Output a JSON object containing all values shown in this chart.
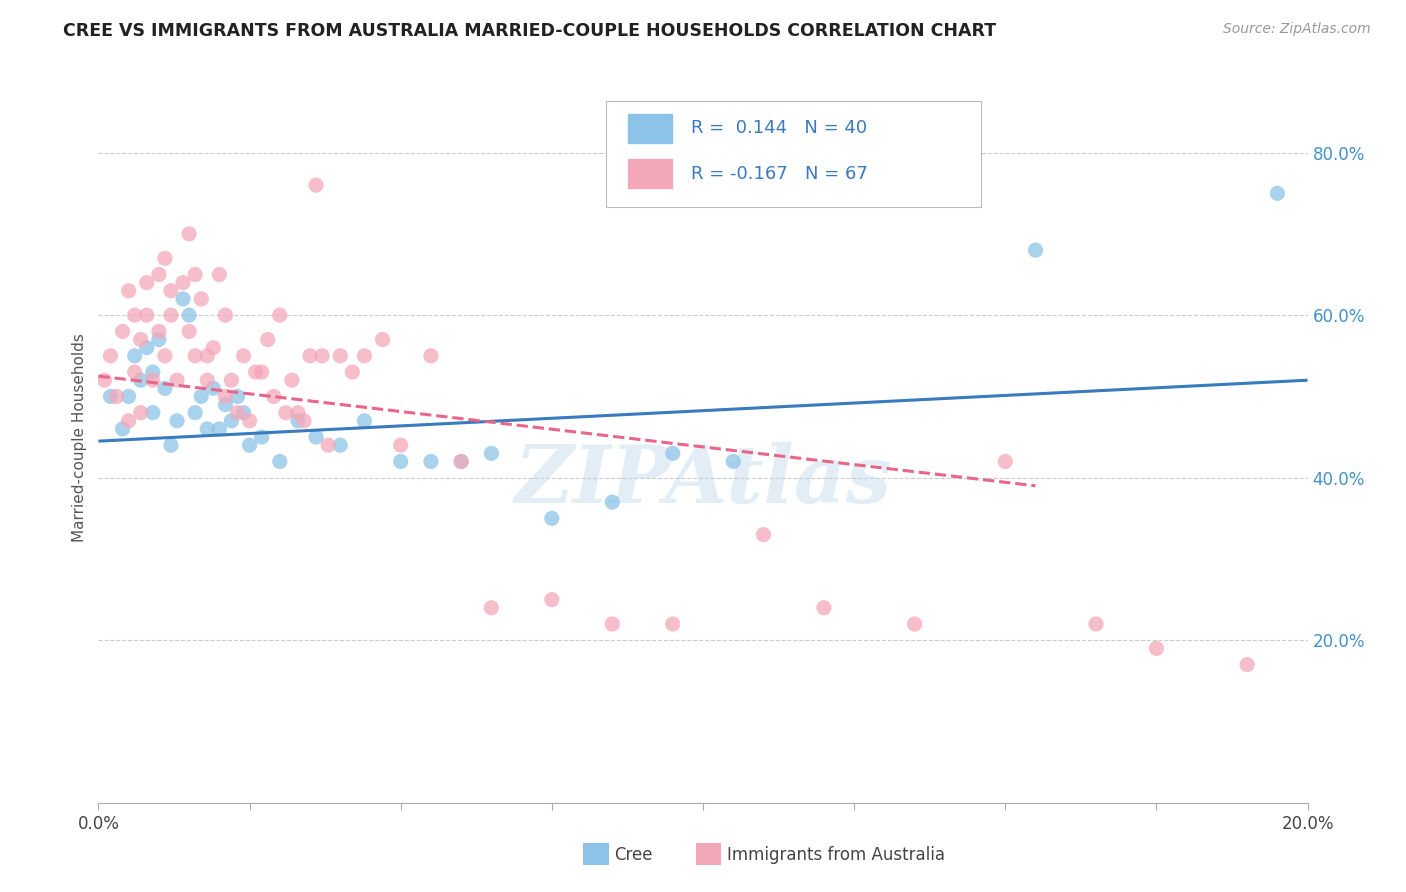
{
  "title": "CREE VS IMMIGRANTS FROM AUSTRALIA MARRIED-COUPLE HOUSEHOLDS CORRELATION CHART",
  "source": "Source: ZipAtlas.com",
  "xlabel_bottom": "Cree",
  "xlabel_bottom2": "Immigrants from Australia",
  "ylabel": "Married-couple Households",
  "legend_r1": "R =  0.144   N = 40",
  "legend_r2": "R = -0.167   N = 67",
  "blue_color": "#8dc3e8",
  "pink_color": "#f4a7b9",
  "trend_blue": "#3a7abf",
  "trend_pink": "#e8668a",
  "watermark": "ZIPAtlas",
  "xlim": [
    0.0,
    0.2
  ],
  "ylim": [
    0.0,
    0.9
  ],
  "xticks": [
    0.0,
    0.025,
    0.05,
    0.075,
    0.1,
    0.125,
    0.15,
    0.175,
    0.2
  ],
  "xtick_labels": [
    "0.0%",
    "",
    "",
    "",
    "",
    "",
    "",
    "",
    "20.0%"
  ],
  "yticks": [
    0.2,
    0.4,
    0.6,
    0.8
  ],
  "blue_x": [
    0.002,
    0.004,
    0.005,
    0.006,
    0.007,
    0.008,
    0.009,
    0.009,
    0.01,
    0.011,
    0.012,
    0.013,
    0.014,
    0.015,
    0.016,
    0.017,
    0.018,
    0.019,
    0.02,
    0.021,
    0.022,
    0.023,
    0.024,
    0.025,
    0.027,
    0.03,
    0.033,
    0.036,
    0.04,
    0.044,
    0.05,
    0.055,
    0.06,
    0.065,
    0.075,
    0.085,
    0.095,
    0.105,
    0.155,
    0.195
  ],
  "blue_y": [
    0.5,
    0.46,
    0.5,
    0.55,
    0.52,
    0.56,
    0.48,
    0.53,
    0.57,
    0.51,
    0.44,
    0.47,
    0.62,
    0.6,
    0.48,
    0.5,
    0.46,
    0.51,
    0.46,
    0.49,
    0.47,
    0.5,
    0.48,
    0.44,
    0.45,
    0.42,
    0.47,
    0.45,
    0.44,
    0.47,
    0.42,
    0.42,
    0.42,
    0.43,
    0.35,
    0.37,
    0.43,
    0.42,
    0.68,
    0.75
  ],
  "pink_x": [
    0.001,
    0.002,
    0.003,
    0.004,
    0.005,
    0.005,
    0.006,
    0.006,
    0.007,
    0.007,
    0.008,
    0.008,
    0.009,
    0.01,
    0.01,
    0.011,
    0.011,
    0.012,
    0.012,
    0.013,
    0.014,
    0.015,
    0.015,
    0.016,
    0.016,
    0.017,
    0.018,
    0.018,
    0.019,
    0.02,
    0.021,
    0.021,
    0.022,
    0.023,
    0.024,
    0.025,
    0.026,
    0.027,
    0.028,
    0.029,
    0.03,
    0.031,
    0.032,
    0.033,
    0.034,
    0.035,
    0.036,
    0.037,
    0.038,
    0.04,
    0.042,
    0.044,
    0.047,
    0.05,
    0.055,
    0.06,
    0.065,
    0.075,
    0.085,
    0.095,
    0.11,
    0.12,
    0.135,
    0.15,
    0.165,
    0.175,
    0.19
  ],
  "pink_y": [
    0.52,
    0.55,
    0.5,
    0.58,
    0.47,
    0.63,
    0.53,
    0.6,
    0.48,
    0.57,
    0.64,
    0.6,
    0.52,
    0.58,
    0.65,
    0.55,
    0.67,
    0.63,
    0.6,
    0.52,
    0.64,
    0.7,
    0.58,
    0.65,
    0.55,
    0.62,
    0.55,
    0.52,
    0.56,
    0.65,
    0.6,
    0.5,
    0.52,
    0.48,
    0.55,
    0.47,
    0.53,
    0.53,
    0.57,
    0.5,
    0.6,
    0.48,
    0.52,
    0.48,
    0.47,
    0.55,
    0.76,
    0.55,
    0.44,
    0.55,
    0.53,
    0.55,
    0.57,
    0.44,
    0.55,
    0.42,
    0.24,
    0.25,
    0.22,
    0.22,
    0.33,
    0.24,
    0.22,
    0.42,
    0.22,
    0.19,
    0.17
  ],
  "blue_trend_x": [
    0.0,
    0.2
  ],
  "blue_trend_y": [
    0.445,
    0.52
  ],
  "pink_trend_x": [
    0.0,
    0.155
  ],
  "pink_trend_y": [
    0.525,
    0.39
  ]
}
